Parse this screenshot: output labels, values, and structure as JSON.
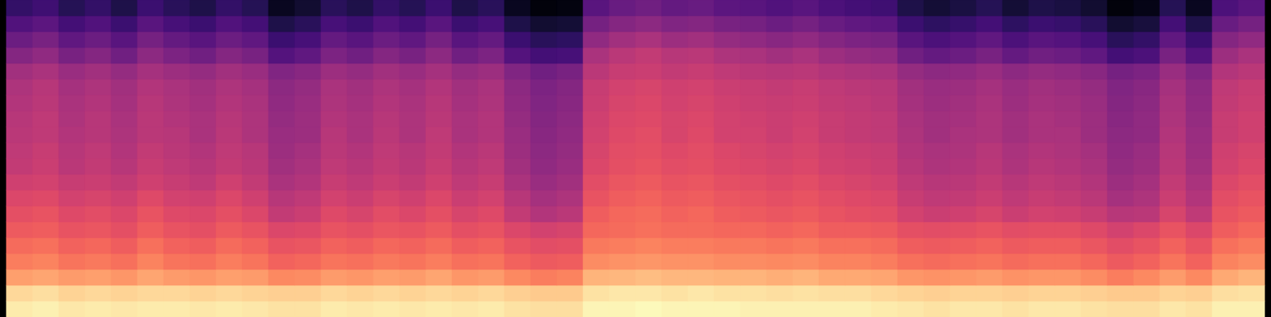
{
  "chart_data": {
    "type": "heatmap",
    "color": "magma",
    "tick_labels": false,
    "zlim": [
      0,
      100
    ],
    "cells": [
      [
        96,
        97,
        95,
        96,
        95,
        96,
        96,
        95,
        96,
        95,
        94,
        94,
        96,
        95,
        96,
        95,
        96,
        95,
        96,
        94,
        93,
        93,
        98,
        98,
        99,
        98,
        98,
        98,
        97,
        97,
        97,
        97,
        97,
        96,
        95,
        94,
        95,
        95,
        94,
        95,
        95,
        94,
        93,
        93,
        95,
        94,
        97,
        97
      ],
      [
        92,
        93,
        91,
        92,
        91,
        92,
        92,
        91,
        92,
        91,
        90,
        90,
        92,
        91,
        92,
        91,
        92,
        91,
        92,
        90,
        89,
        89,
        94,
        95,
        95,
        94,
        95,
        94,
        94,
        93,
        94,
        93,
        93,
        92,
        91,
        90,
        91,
        91,
        90,
        91,
        91,
        90,
        89,
        89,
        91,
        90,
        93,
        94
      ],
      [
        80,
        81,
        79,
        80,
        78,
        81,
        79,
        78,
        80,
        79,
        75,
        76,
        79,
        78,
        80,
        79,
        81,
        78,
        79,
        75,
        73,
        74,
        84,
        85,
        86,
        85,
        85,
        84,
        84,
        83,
        84,
        82,
        82,
        81,
        78,
        77,
        78,
        79,
        77,
        78,
        78,
        76,
        73,
        75,
        79,
        75,
        82,
        84
      ],
      [
        73,
        74,
        71,
        72,
        70,
        74,
        71,
        70,
        73,
        71,
        67,
        68,
        71,
        70,
        72,
        71,
        73,
        70,
        71,
        67,
        65,
        66,
        76,
        77,
        78,
        77,
        77,
        76,
        76,
        75,
        76,
        74,
        74,
        73,
        70,
        69,
        70,
        71,
        69,
        70,
        70,
        68,
        65,
        67,
        71,
        67,
        74,
        76
      ],
      [
        69,
        70,
        67,
        68,
        66,
        70,
        67,
        66,
        69,
        67,
        63,
        64,
        67,
        66,
        68,
        67,
        69,
        66,
        67,
        63,
        61,
        62,
        72,
        73,
        74,
        73,
        73,
        72,
        72,
        71,
        72,
        70,
        70,
        69,
        66,
        65,
        66,
        67,
        65,
        66,
        66,
        64,
        61,
        63,
        67,
        63,
        70,
        72
      ],
      [
        65,
        66,
        63,
        64,
        62,
        66,
        63,
        62,
        65,
        63,
        59,
        60,
        63,
        62,
        64,
        63,
        65,
        62,
        63,
        59,
        57,
        58,
        68,
        69,
        70,
        69,
        69,
        68,
        68,
        67,
        68,
        66,
        66,
        65,
        62,
        61,
        62,
        63,
        61,
        62,
        62,
        60,
        57,
        59,
        63,
        59,
        66,
        68
      ],
      [
        62,
        63,
        60,
        61,
        59,
        63,
        60,
        59,
        62,
        59,
        53,
        55,
        60,
        58,
        61,
        59,
        62,
        58,
        60,
        53,
        49,
        51,
        66,
        68,
        69,
        67,
        68,
        66,
        65,
        64,
        65,
        63,
        62,
        61,
        57,
        55,
        56,
        58,
        55,
        57,
        56,
        54,
        50,
        51,
        58,
        52,
        63,
        65
      ],
      [
        59,
        60,
        57,
        58,
        56,
        60,
        57,
        56,
        59,
        56,
        50,
        52,
        57,
        55,
        58,
        56,
        59,
        55,
        57,
        50,
        46,
        48,
        63,
        66,
        67,
        65,
        66,
        64,
        63,
        62,
        63,
        61,
        60,
        59,
        54,
        52,
        53,
        55,
        52,
        54,
        53,
        51,
        46,
        48,
        55,
        49,
        61,
        63
      ],
      [
        56,
        57,
        54,
        55,
        53,
        56,
        54,
        52,
        56,
        53,
        47,
        49,
        54,
        52,
        55,
        53,
        56,
        52,
        54,
        47,
        43,
        45,
        61,
        64,
        65,
        63,
        64,
        62,
        61,
        60,
        61,
        59,
        58,
        57,
        52,
        50,
        51,
        53,
        50,
        52,
        51,
        49,
        44,
        46,
        53,
        47,
        59,
        61
      ],
      [
        53,
        55,
        51,
        53,
        50,
        54,
        52,
        50,
        53,
        51,
        45,
        47,
        52,
        50,
        53,
        51,
        54,
        50,
        52,
        45,
        41,
        43,
        59,
        62,
        63,
        61,
        62,
        60,
        59,
        58,
        59,
        57,
        56,
        55,
        50,
        48,
        49,
        51,
        48,
        50,
        49,
        47,
        42,
        44,
        51,
        45,
        57,
        59
      ],
      [
        52,
        54,
        50,
        52,
        49,
        53,
        51,
        49,
        52,
        50,
        44,
        46,
        51,
        49,
        52,
        50,
        53,
        49,
        51,
        44,
        40,
        42,
        58,
        61,
        62,
        60,
        61,
        59,
        58,
        57,
        58,
        56,
        55,
        54,
        49,
        47,
        48,
        50,
        47,
        49,
        48,
        46,
        41,
        43,
        50,
        44,
        56,
        58
      ],
      [
        51,
        52,
        49,
        50,
        48,
        51,
        50,
        47,
        51,
        48,
        43,
        44,
        50,
        47,
        51,
        48,
        52,
        47,
        49,
        43,
        39,
        41,
        57,
        60,
        61,
        58,
        60,
        57,
        57,
        55,
        57,
        54,
        53,
        52,
        48,
        45,
        47,
        48,
        45,
        47,
        47,
        44,
        40,
        41,
        49,
        43,
        54,
        56
      ],
      [
        50,
        52,
        48,
        50,
        47,
        51,
        49,
        47,
        50,
        48,
        42,
        44,
        49,
        47,
        50,
        48,
        51,
        47,
        49,
        42,
        38,
        40,
        56,
        59,
        60,
        58,
        59,
        57,
        56,
        55,
        56,
        54,
        53,
        52,
        47,
        45,
        46,
        48,
        45,
        47,
        46,
        44,
        39,
        41,
        48,
        42,
        54,
        56
      ],
      [
        49,
        51,
        47,
        49,
        46,
        50,
        48,
        46,
        49,
        47,
        41,
        43,
        48,
        46,
        49,
        47,
        50,
        46,
        48,
        41,
        37,
        39,
        55,
        58,
        59,
        57,
        58,
        56,
        55,
        54,
        55,
        53,
        52,
        51,
        46,
        44,
        45,
        47,
        44,
        46,
        45,
        43,
        38,
        40,
        47,
        41,
        53,
        55
      ],
      [
        48,
        50,
        46,
        48,
        45,
        49,
        47,
        45,
        48,
        46,
        40,
        42,
        47,
        45,
        48,
        46,
        49,
        45,
        47,
        40,
        36,
        38,
        54,
        57,
        58,
        56,
        57,
        55,
        54,
        53,
        54,
        52,
        51,
        50,
        45,
        43,
        44,
        46,
        43,
        45,
        44,
        42,
        37,
        39,
        46,
        40,
        52,
        54
      ],
      [
        45,
        47,
        43,
        45,
        42,
        46,
        44,
        42,
        45,
        43,
        37,
        39,
        44,
        42,
        45,
        43,
        46,
        42,
        44,
        37,
        33,
        35,
        51,
        54,
        55,
        53,
        54,
        52,
        51,
        50,
        51,
        49,
        48,
        47,
        42,
        40,
        41,
        43,
        40,
        42,
        41,
        39,
        34,
        36,
        43,
        37,
        49,
        51
      ],
      [
        38,
        41,
        35,
        38,
        33,
        40,
        36,
        33,
        38,
        35,
        26,
        29,
        36,
        33,
        38,
        35,
        40,
        33,
        36,
        26,
        22,
        23,
        47,
        51,
        53,
        50,
        51,
        48,
        47,
        45,
        47,
        44,
        42,
        41,
        33,
        30,
        32,
        35,
        30,
        33,
        32,
        29,
        22,
        24,
        35,
        26,
        44,
        47
      ],
      [
        32,
        35,
        29,
        32,
        27,
        34,
        30,
        27,
        32,
        29,
        20,
        23,
        30,
        27,
        32,
        29,
        34,
        27,
        30,
        20,
        16,
        17,
        41,
        45,
        47,
        44,
        45,
        42,
        41,
        39,
        41,
        38,
        36,
        35,
        27,
        24,
        26,
        29,
        24,
        27,
        26,
        23,
        16,
        18,
        29,
        20,
        38,
        41
      ],
      [
        25,
        28,
        22,
        25,
        20,
        27,
        23,
        20,
        25,
        22,
        13,
        16,
        23,
        20,
        25,
        22,
        27,
        20,
        23,
        13,
        9,
        10,
        34,
        38,
        40,
        37,
        38,
        35,
        34,
        32,
        34,
        31,
        29,
        28,
        20,
        17,
        19,
        22,
        17,
        20,
        19,
        16,
        9,
        11,
        22,
        13,
        31,
        34
      ],
      [
        18,
        21,
        15,
        18,
        13,
        20,
        16,
        13,
        18,
        15,
        6,
        9,
        16,
        13,
        18,
        15,
        20,
        13,
        16,
        6,
        2,
        3,
        27,
        31,
        33,
        30,
        31,
        28,
        27,
        25,
        27,
        24,
        22,
        21,
        13,
        10,
        12,
        15,
        10,
        13,
        12,
        9,
        2,
        4,
        15,
        6,
        24,
        27
      ]
    ]
  }
}
